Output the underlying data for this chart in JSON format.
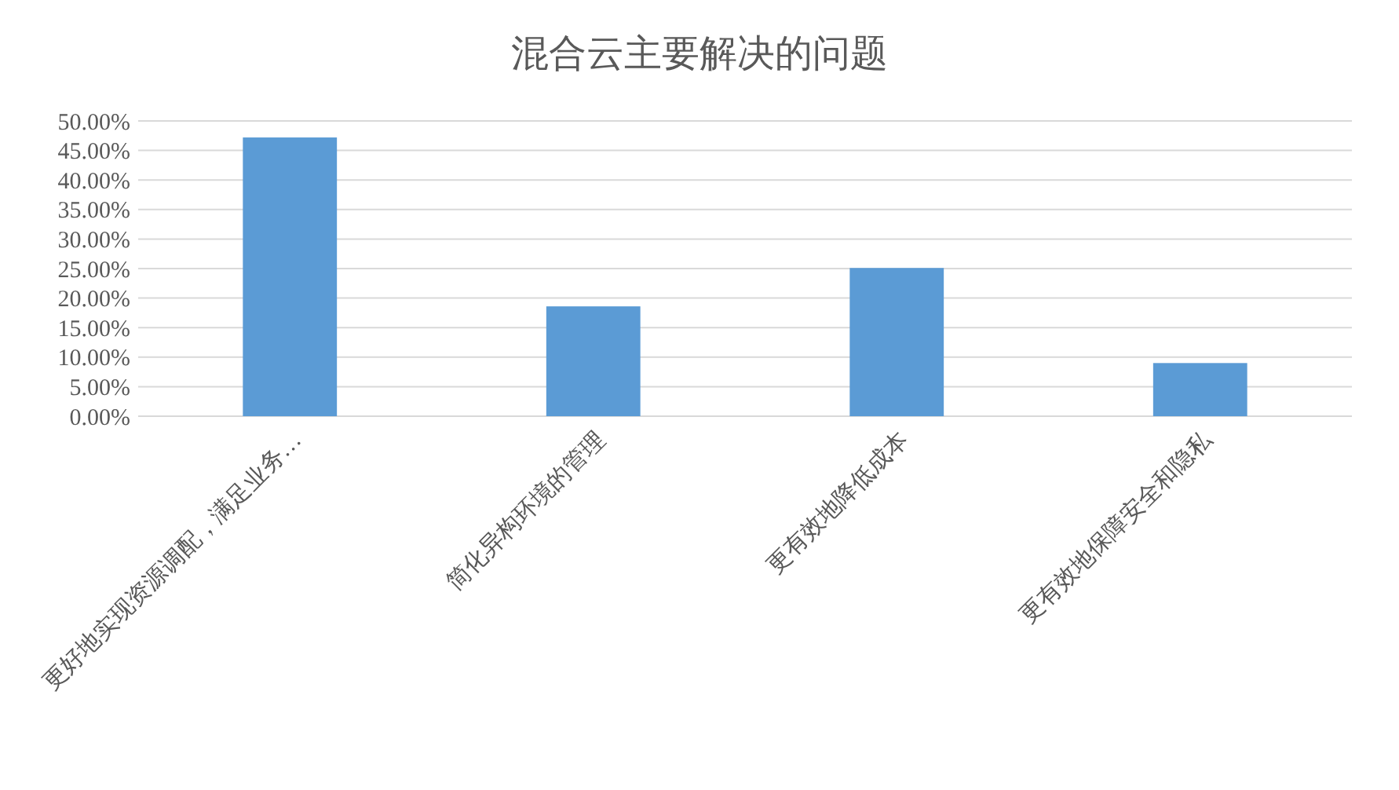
{
  "chart_data": {
    "type": "bar",
    "title": "混合云主要解决的问题",
    "categories": [
      "更好地实现资源调配，满足业务…",
      "简化异构环境的管理",
      "更有效地降低成本",
      "更有效地保障安全和隐私"
    ],
    "values": [
      47.2,
      18.6,
      25.1,
      9.0
    ],
    "color": "#5b9bd5",
    "ylim": [
      0,
      50
    ],
    "yticks": [
      {
        "value": 0,
        "label": "0.00%"
      },
      {
        "value": 5,
        "label": "5.00%"
      },
      {
        "value": 10,
        "label": "10.00%"
      },
      {
        "value": 15,
        "label": "15.00%"
      },
      {
        "value": 20,
        "label": "20.00%"
      },
      {
        "value": 25,
        "label": "25.00%"
      },
      {
        "value": 30,
        "label": "30.00%"
      },
      {
        "value": 35,
        "label": "35.00%"
      },
      {
        "value": 40,
        "label": "40.00%"
      },
      {
        "value": 45,
        "label": "45.00%"
      },
      {
        "value": 50,
        "label": "50.00%"
      }
    ],
    "grid": "y"
  }
}
